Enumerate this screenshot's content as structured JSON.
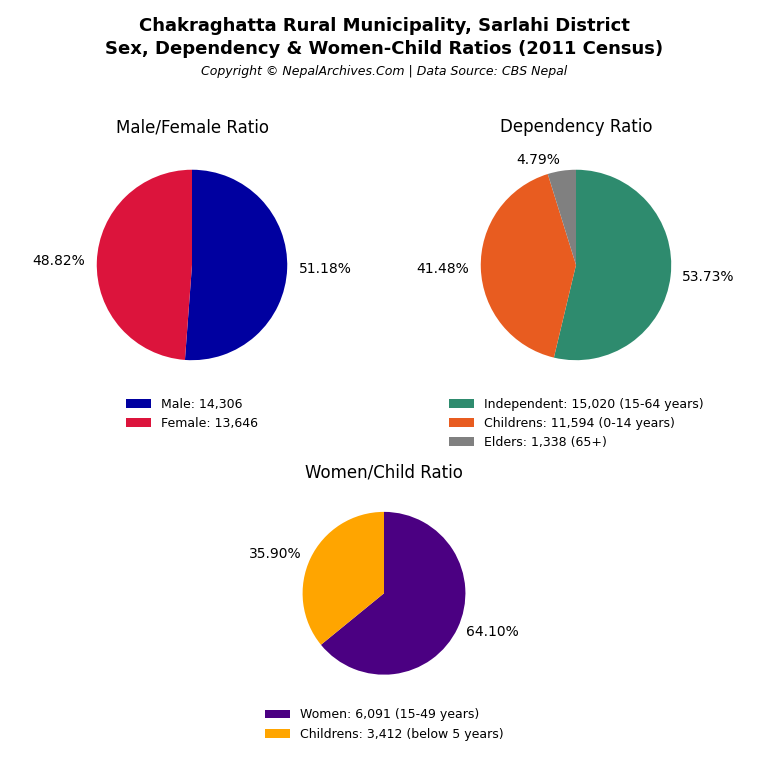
{
  "title": "Chakraghatta Rural Municipality, Sarlahi District",
  "subtitle": "Sex, Dependency & Women-Child Ratios (2011 Census)",
  "annotations": [
    "Copyright © NepalArchives.Com | Data Source: CBS Nepal"
  ],
  "chart_data": [
    {
      "type": "pie",
      "title": "Male/Female Ratio",
      "categories": [
        "Male: 14,306",
        "Female: 13,646"
      ],
      "values": [
        51.18,
        48.82
      ],
      "value_labels": [
        "51.18%",
        "48.82%"
      ],
      "colors": [
        "#0000A0",
        "#DC143C"
      ],
      "data_labels": true,
      "legend": "upper center"
    },
    {
      "type": "pie",
      "title": "Dependency Ratio",
      "categories": [
        "Independent: 15,020 (15-64 years)",
        "Childrens: 11,594 (0-14 years)",
        "Elders: 1,338 (65+)"
      ],
      "values": [
        53.73,
        41.48,
        4.79
      ],
      "value_labels": [
        "53.73%",
        "41.48%",
        "4.79%"
      ],
      "colors": [
        "#2E8B6E",
        "#E85C20",
        "#808080"
      ],
      "data_labels": true,
      "legend": "upper center"
    },
    {
      "type": "pie",
      "title": "Women/Child Ratio",
      "categories": [
        "Women: 6,091 (15-49 years)",
        "Childrens: 3,412 (below 5 years)"
      ],
      "values": [
        64.1,
        35.9
      ],
      "value_labels": [
        "64.10%",
        "35.90%"
      ],
      "colors": [
        "#4B0082",
        "#FFA500"
      ],
      "data_labels": true,
      "legend": "upper center"
    }
  ]
}
